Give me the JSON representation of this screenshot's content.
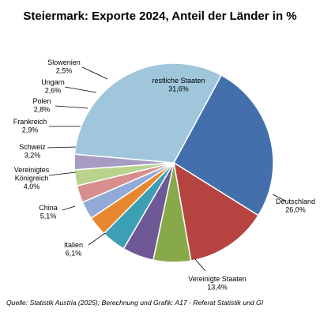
{
  "chart_data": {
    "type": "pie",
    "title": "Steiermark: Exporte 2024, Anteil der Länder in %",
    "unit": "%",
    "slices": [
      {
        "label": "Deutschland",
        "value": 26.0,
        "value_label": "26,0%",
        "color": "#4370ad"
      },
      {
        "label": "Vereinigte Staaten",
        "value": 13.4,
        "value_label": "13,4%",
        "color": "#b5433f"
      },
      {
        "label": "Italien",
        "value": 6.1,
        "value_label": "6,1%",
        "color": "#88a94a"
      },
      {
        "label": "China",
        "value": 5.1,
        "value_label": "5,1%",
        "color": "#6e5996"
      },
      {
        "label": "Vereinigtes Königreich",
        "label_lines": [
          "Vereinigtes",
          "Königreich"
        ],
        "value": 4.0,
        "value_label": "4,0%",
        "color": "#3c9fb3"
      },
      {
        "label": "Schweiz",
        "value": 3.2,
        "value_label": "3,2%",
        "color": "#e8882e"
      },
      {
        "label": "Frankreich",
        "value": 2.9,
        "value_label": "2,9%",
        "color": "#93aad8"
      },
      {
        "label": "Polen",
        "value": 2.8,
        "value_label": "2,8%",
        "color": "#d88e8c"
      },
      {
        "label": "Ungarn",
        "value": 2.6,
        "value_label": "2,6%",
        "color": "#b9d38f"
      },
      {
        "label": "Slowenien",
        "value": 2.5,
        "value_label": "2,5%",
        "color": "#a69bc2"
      },
      {
        "label": "restliche Staaten",
        "value": 31.6,
        "value_label": "31,6%",
        "color": "#9fc6db"
      }
    ],
    "legend": "none"
  },
  "source": "Quelle: Statistik Austria (2025); Berechnung und Grafik: A17 - Referat  Statistik und GI"
}
